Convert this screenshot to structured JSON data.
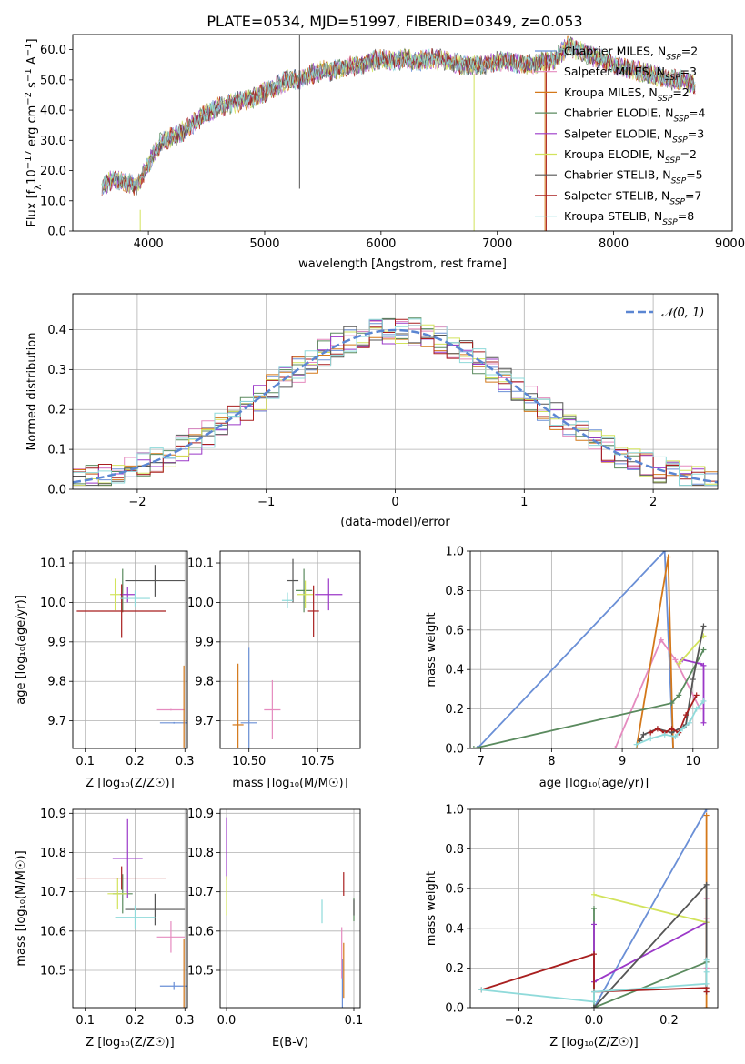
{
  "figure_title": "PLATE=0534, MJD=51997, FIBERID=0349, z=0.053",
  "colors": {
    "Chabrier MILES": "#6a8fd6",
    "Salpeter MILES": "#e58bbf",
    "Kroupa MILES": "#d4781a",
    "Chabrier ELODIE": "#5a8a5e",
    "Salpeter ELODIE": "#9b38c8",
    "Kroupa ELODIE": "#d2e35c",
    "Chabrier STELIB": "#555555",
    "Salpeter STELIB": "#a81f1f",
    "Kroupa STELIB": "#8fdada",
    "normal": "#5b86d2"
  },
  "chart_data": [
    {
      "id": "spectrum",
      "type": "line",
      "xlabel": "wavelength [Angstrom, rest frame]",
      "ylabel": "Flux [f_λ 10^-17 erg cm^-2 s^-1 A^-1]",
      "xlim": [
        3350,
        9020
      ],
      "ylim": [
        0,
        65
      ],
      "xticks": [
        4000,
        5000,
        6000,
        7000,
        8000,
        9000
      ],
      "yticks": [
        0,
        10,
        20,
        30,
        40,
        50,
        60
      ],
      "grid": false,
      "legend_position": "top-right",
      "legend": [
        {
          "model": "Chabrier MILES",
          "nssp": "2"
        },
        {
          "model": "Salpeter MILES",
          "nssp": "3"
        },
        {
          "model": "Kroupa MILES",
          "nssp": "2"
        },
        {
          "model": "Chabrier ELODIE",
          "nssp": "4"
        },
        {
          "model": "Salpeter ELODIE",
          "nssp": "3"
        },
        {
          "model": "Kroupa ELODIE",
          "nssp": "2"
        },
        {
          "model": "Chabrier STELIB",
          "nssp": "5"
        },
        {
          "model": "Salpeter STELIB",
          "nssp": "7"
        },
        {
          "model": "Kroupa STELIB",
          "nssp": "8"
        }
      ],
      "continuum": {
        "x": [
          3600,
          3700,
          3800,
          3900,
          4000,
          4100,
          4200,
          4300,
          4400,
          4500,
          4600,
          4700,
          4800,
          4900,
          5000,
          5100,
          5200,
          5300,
          5400,
          5500,
          5600,
          5700,
          5800,
          5900,
          6000,
          6100,
          6200,
          6300,
          6400,
          6500,
          6600,
          6700,
          6800,
          6900,
          7000,
          7100,
          7200,
          7300,
          7400,
          7500,
          7600,
          7700,
          7800,
          7900,
          8000,
          8100,
          8200,
          8300,
          8400,
          8500,
          8600,
          8700
        ],
        "y": [
          15,
          17,
          16,
          15,
          22,
          29,
          31,
          33,
          36,
          39,
          41,
          42,
          43,
          44,
          46,
          48,
          50,
          50,
          52,
          53,
          53,
          54,
          55,
          56,
          57,
          56,
          57,
          56,
          57,
          57,
          56,
          55,
          55,
          55,
          56,
          56,
          55,
          55,
          56,
          57,
          61,
          60,
          58,
          57,
          55,
          54,
          53,
          52,
          51,
          50,
          50,
          48
        ]
      },
      "spikes": [
        {
          "x": 5300,
          "y_from": 14,
          "y_to": 65,
          "series": "Chabrier STELIB"
        },
        {
          "x": 3930,
          "y_from": 0,
          "y_to": 7,
          "series": "Kroupa ELODIE"
        },
        {
          "x": 6800,
          "y_from": 0,
          "y_to": 52,
          "series": "Kroupa ELODIE"
        },
        {
          "x": 7420,
          "y_from": 0,
          "y_to": 58,
          "series": "Salpeter STELIB"
        },
        {
          "x": 7410,
          "y_from": 0,
          "y_to": 57,
          "series": "Kroupa MILES"
        }
      ]
    },
    {
      "id": "residuals",
      "type": "area",
      "xlabel": "(data-model)/error",
      "ylabel": "Normed distribution",
      "xlim": [
        -2.5,
        2.5
      ],
      "ylim": [
        0,
        0.49
      ],
      "xticks": [
        -2,
        -1,
        0,
        1,
        2
      ],
      "yticks": [
        0.0,
        0.1,
        0.2,
        0.3,
        0.4
      ],
      "grid": true,
      "legend_position": "top-right",
      "legend_label": "𝒩(0, 1)",
      "bin_width": 0.1
    },
    {
      "id": "age-vs-Z",
      "type": "scatter",
      "xlabel": "Z [log10(Z/Z⊙)]",
      "ylabel": "age [log10(age/yr)]",
      "xlim": [
        0.075,
        0.305
      ],
      "ylim": [
        9.63,
        10.13
      ],
      "xticks": [
        0.1,
        0.2,
        0.3
      ],
      "ytick_labels": [
        "9.7",
        "9.8",
        "9.9",
        "10.0",
        "10.1"
      ],
      "grid": true,
      "points": [
        {
          "s": "Chabrier MILES",
          "x": 0.278,
          "y": 9.695,
          "ex": 0.028,
          "ey": 0.002
        },
        {
          "s": "Salpeter MILES",
          "x": 0.272,
          "y": 9.728,
          "ex": 0.028,
          "ey": 0.002
        },
        {
          "s": "Kroupa MILES",
          "x": 0.298,
          "y": 9.69,
          "ex": 0.0,
          "ey": 0.15
        },
        {
          "s": "Chabrier ELODIE",
          "x": 0.175,
          "y": 10.03,
          "ex": 0.0,
          "ey": 0.055
        },
        {
          "s": "Salpeter ELODIE",
          "x": 0.185,
          "y": 10.02,
          "ex": 0.015,
          "ey": 0.02
        },
        {
          "s": "Kroupa ELODIE",
          "x": 0.16,
          "y": 10.02,
          "ex": 0.01,
          "ey": 0.04
        },
        {
          "s": "Chabrier STELIB",
          "x": 0.24,
          "y": 10.055,
          "ex": 0.06,
          "ey": 0.04
        },
        {
          "s": "Salpeter STELIB",
          "x": 0.173,
          "y": 9.978,
          "ex": 0.09,
          "ey": 0.068
        },
        {
          "s": "Kroupa STELIB",
          "x": 0.2,
          "y": 10.01,
          "ex": 0.03,
          "ey": 0.02
        }
      ]
    },
    {
      "id": "age-vs-mass",
      "type": "scatter",
      "xlabel": "mass [log10(M/M⊙)]",
      "ylabel": "",
      "xlim": [
        10.395,
        10.905
      ],
      "ylim": [
        9.63,
        10.13
      ],
      "xticks": [
        10.5,
        10.75
      ],
      "ytick_labels": [
        "9.7",
        "9.8",
        "9.9",
        "10.0",
        "10.1"
      ],
      "grid": true,
      "points": [
        {
          "s": "Chabrier MILES",
          "x": 10.5,
          "y": 9.695,
          "ex": 0.03,
          "ey": 0.19
        },
        {
          "s": "Salpeter MILES",
          "x": 10.585,
          "y": 9.728,
          "ex": 0.03,
          "ey": 0.075
        },
        {
          "s": "Kroupa MILES",
          "x": 10.46,
          "y": 9.69,
          "ex": 0.02,
          "ey": 0.155
        },
        {
          "s": "Chabrier ELODIE",
          "x": 10.7,
          "y": 10.03,
          "ex": 0.03,
          "ey": 0.055
        },
        {
          "s": "Salpeter ELODIE",
          "x": 10.79,
          "y": 10.02,
          "ex": 0.05,
          "ey": 0.04
        },
        {
          "s": "Kroupa ELODIE",
          "x": 10.705,
          "y": 10.02,
          "ex": 0.03,
          "ey": 0.035
        },
        {
          "s": "Chabrier STELIB",
          "x": 10.66,
          "y": 10.055,
          "ex": 0.02,
          "ey": 0.055
        },
        {
          "s": "Salpeter STELIB",
          "x": 10.735,
          "y": 9.978,
          "ex": 0.02,
          "ey": 0.065
        },
        {
          "s": "Kroupa STELIB",
          "x": 10.64,
          "y": 10.005,
          "ex": 0.02,
          "ey": 0.02
        }
      ]
    },
    {
      "id": "weight-vs-age",
      "type": "line",
      "xlabel": "age [log10(age/yr)]",
      "ylabel": "mass weight",
      "xlim": [
        6.85,
        10.35
      ],
      "ylim": [
        0,
        1.0
      ],
      "xticks": [
        7,
        8,
        9,
        10
      ],
      "yticks": [
        0.0,
        0.2,
        0.4,
        0.6,
        0.8,
        1.0
      ],
      "grid": true,
      "series": [
        {
          "s": "Chabrier MILES",
          "x": [
            6.95,
            9.6,
            9.72
          ],
          "y": [
            0.0,
            1.0,
            0.0
          ]
        },
        {
          "s": "Salpeter MILES",
          "x": [
            8.9,
            9.55,
            9.75,
            10.1
          ],
          "y": [
            0.0,
            0.55,
            0.45,
            0.2
          ]
        },
        {
          "s": "Kroupa MILES",
          "x": [
            9.2,
            9.65,
            9.72
          ],
          "y": [
            0.0,
            0.97,
            0.0
          ]
        },
        {
          "s": "Chabrier ELODIE",
          "x": [
            6.9,
            9.7,
            9.8,
            10.15
          ],
          "y": [
            0.0,
            0.23,
            0.27,
            0.5
          ]
        },
        {
          "s": "Salpeter ELODIE",
          "x": [
            9.85,
            10.1,
            10.15,
            10.15
          ],
          "y": [
            0.45,
            0.43,
            0.42,
            0.13
          ]
        },
        {
          "s": "Kroupa ELODIE",
          "x": [
            9.8,
            10.15
          ],
          "y": [
            0.43,
            0.57
          ]
        },
        {
          "s": "Chabrier STELIB",
          "x": [
            9.25,
            9.3,
            9.5,
            9.7,
            9.9,
            10.0,
            10.15
          ],
          "y": [
            0.04,
            0.07,
            0.1,
            0.08,
            0.12,
            0.35,
            0.62
          ]
        },
        {
          "s": "Salpeter STELIB",
          "x": [
            9.4,
            9.5,
            9.6,
            9.7,
            9.8,
            9.9,
            10.05
          ],
          "y": [
            0.08,
            0.1,
            0.08,
            0.1,
            0.08,
            0.17,
            0.27
          ]
        },
        {
          "s": "Kroupa STELIB",
          "x": [
            9.2,
            9.4,
            9.6,
            9.75,
            9.85,
            9.95,
            10.05,
            10.15
          ],
          "y": [
            0.02,
            0.05,
            0.07,
            0.06,
            0.1,
            0.13,
            0.2,
            0.24
          ]
        }
      ]
    },
    {
      "id": "mass-vs-Z",
      "type": "scatter",
      "xlabel": "Z [log10(Z/Z⊙)]",
      "ylabel": "mass [log10(M/M⊙)]",
      "xlim": [
        0.075,
        0.305
      ],
      "ylim": [
        10.405,
        10.91
      ],
      "xticks": [
        0.1,
        0.2,
        0.3
      ],
      "ytick_labels": [
        "10.5",
        "10.6",
        "10.7",
        "10.8",
        "10.9"
      ],
      "grid": true,
      "points": [
        {
          "s": "Chabrier MILES",
          "x": 0.278,
          "y": 10.46,
          "ex": 0.028,
          "ey": 0.01
        },
        {
          "s": "Salpeter MILES",
          "x": 0.272,
          "y": 10.585,
          "ex": 0.028,
          "ey": 0.04
        },
        {
          "s": "Kroupa MILES",
          "x": 0.298,
          "y": 10.44,
          "ex": 0.0,
          "ey": 0.14
        },
        {
          "s": "Chabrier ELODIE",
          "x": 0.175,
          "y": 10.695,
          "ex": 0.02,
          "ey": 0.05
        },
        {
          "s": "Salpeter ELODIE",
          "x": 0.185,
          "y": 10.785,
          "ex": 0.03,
          "ey": 0.1
        },
        {
          "s": "Kroupa ELODIE",
          "x": 0.165,
          "y": 10.695,
          "ex": 0.02,
          "ey": 0.04
        },
        {
          "s": "Chabrier STELIB",
          "x": 0.24,
          "y": 10.655,
          "ex": 0.06,
          "ey": 0.04
        },
        {
          "s": "Salpeter STELIB",
          "x": 0.173,
          "y": 10.735,
          "ex": 0.09,
          "ey": 0.03
        },
        {
          "s": "Kroupa STELIB",
          "x": 0.2,
          "y": 10.635,
          "ex": 0.04,
          "ey": 0.03
        }
      ]
    },
    {
      "id": "mass-vs-EBV",
      "type": "scatter",
      "xlabel": "E(B-V)",
      "ylabel": "",
      "xlim": [
        -0.005,
        0.105
      ],
      "ylim": [
        10.405,
        10.91
      ],
      "xticks": [
        0.0,
        0.1
      ],
      "ytick_labels": [
        "10.5",
        "10.6",
        "10.7",
        "10.8",
        "10.9"
      ],
      "grid": true,
      "points": [
        {
          "s": "Chabrier MILES",
          "x": 0.091,
          "y": 10.46,
          "ey": 0.07
        },
        {
          "s": "Salpeter MILES",
          "x": 0.0905,
          "y": 10.545,
          "ey": 0.065
        },
        {
          "s": "Kroupa MILES",
          "x": 0.092,
          "y": 10.5,
          "ey": 0.07
        },
        {
          "s": "Chabrier ELODIE",
          "x": 0.1,
          "y": 10.655,
          "ey": 0.03
        },
        {
          "s": "Salpeter ELODIE",
          "x": 0.0,
          "y": 10.81,
          "ey": 0.08
        },
        {
          "s": "Kroupa ELODIE",
          "x": 0.0,
          "y": 10.69,
          "ey": 0.05
        },
        {
          "s": "Chabrier STELIB",
          "x": 0.1,
          "y": 10.66,
          "ey": 0.02
        },
        {
          "s": "Salpeter STELIB",
          "x": 0.092,
          "y": 10.72,
          "ey": 0.03
        },
        {
          "s": "Kroupa STELIB",
          "x": 0.075,
          "y": 10.65,
          "ey": 0.03
        }
      ]
    },
    {
      "id": "weight-vs-Z",
      "type": "line",
      "xlabel": "Z [log10(Z/Z⊙)]",
      "ylabel": "mass weight",
      "xlim": [
        -0.33,
        0.33
      ],
      "ylim": [
        0,
        1.0
      ],
      "xticks": [
        -0.2,
        0.0,
        0.2
      ],
      "yticks": [
        0.0,
        0.2,
        0.4,
        0.6,
        0.8,
        1.0
      ],
      "grid": true,
      "series": [
        {
          "s": "Chabrier MILES",
          "x": [
            0.0,
            0.3
          ],
          "y": [
            0.0,
            1.0
          ]
        },
        {
          "s": "Salpeter MILES",
          "x": [
            0.3,
            0.3,
            0.3
          ],
          "y": [
            0.2,
            0.55,
            0.45
          ]
        },
        {
          "s": "Kroupa MILES",
          "x": [
            0.3,
            0.3
          ],
          "y": [
            0.0,
            0.97
          ]
        },
        {
          "s": "Chabrier ELODIE",
          "x": [
            0.0,
            0.0,
            0.3,
            0.3
          ],
          "y": [
            0.5,
            0.0,
            0.23,
            0.1
          ]
        },
        {
          "s": "Salpeter ELODIE",
          "x": [
            0.0,
            0.0,
            0.3
          ],
          "y": [
            0.42,
            0.13,
            0.43
          ]
        },
        {
          "s": "Kroupa ELODIE",
          "x": [
            0.0,
            0.3
          ],
          "y": [
            0.57,
            0.43
          ]
        },
        {
          "s": "Chabrier STELIB",
          "x": [
            0.0,
            0.3,
            0.3
          ],
          "y": [
            0.0,
            0.62,
            0.08
          ]
        },
        {
          "s": "Salpeter STELIB",
          "x": [
            -0.3,
            0.0,
            0.0,
            0.3,
            0.3
          ],
          "y": [
            0.09,
            0.27,
            0.08,
            0.1,
            0.08
          ]
        },
        {
          "s": "Kroupa STELIB",
          "x": [
            -0.3,
            0.0,
            0.0,
            0.3,
            0.3,
            0.3
          ],
          "y": [
            0.09,
            0.03,
            0.08,
            0.12,
            0.24,
            0.18
          ]
        }
      ]
    }
  ]
}
